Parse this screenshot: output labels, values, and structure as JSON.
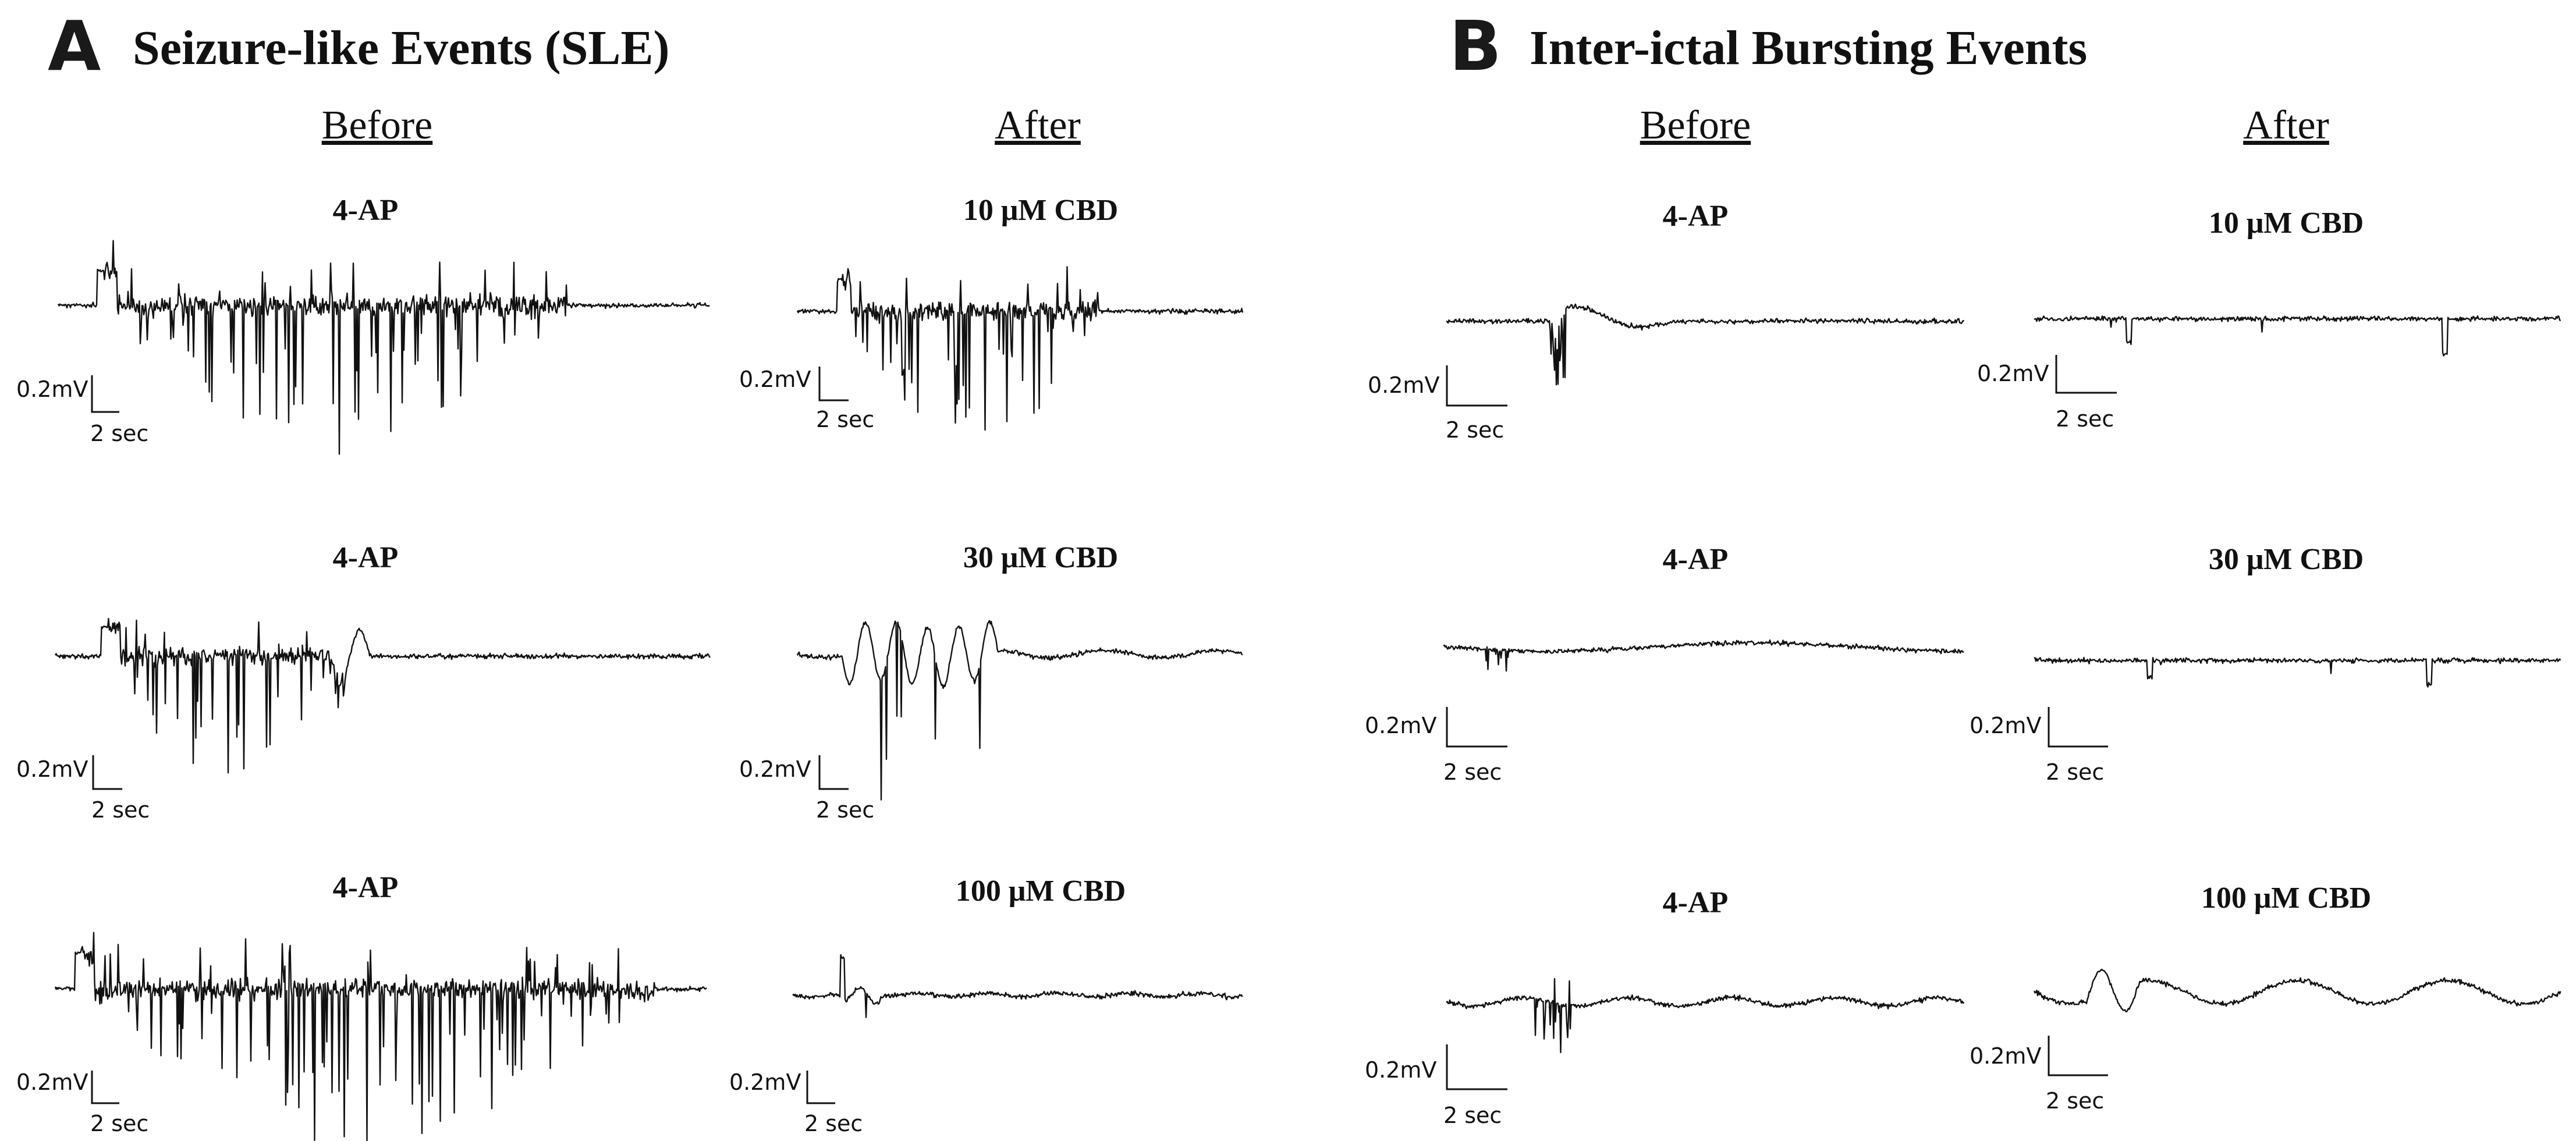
{
  "chart_data": [
    {
      "type": "line",
      "panel_letter": "A",
      "title": "Seizure-like Events (SLE)",
      "column_headers": [
        "Before",
        "After"
      ],
      "scale_bar": {
        "voltage": "0.2mV",
        "time": "2 sec"
      },
      "rows": [
        {
          "before": {
            "condition": "4-AP"
          },
          "after": {
            "condition": "10 μM CBD"
          }
        },
        {
          "before": {
            "condition": "4-AP"
          },
          "after": {
            "condition": "30 μM CBD"
          }
        },
        {
          "before": {
            "condition": "4-AP"
          },
          "after": {
            "condition": "100 μM CBD"
          }
        }
      ]
    },
    {
      "type": "line",
      "panel_letter": "B",
      "title": "Inter-ictal Bursting Events",
      "column_headers": [
        "Before",
        "After"
      ],
      "scale_bar": {
        "voltage": "0.2mV",
        "time": "2 sec"
      },
      "rows": [
        {
          "before": {
            "condition": "4-AP"
          },
          "after": {
            "condition": "10 μM CBD"
          }
        },
        {
          "before": {
            "condition": "4-AP"
          },
          "after": {
            "condition": "30 μM CBD"
          }
        },
        {
          "before": {
            "condition": "4-AP"
          },
          "after": {
            "condition": "100 μM CBD"
          }
        }
      ]
    }
  ]
}
